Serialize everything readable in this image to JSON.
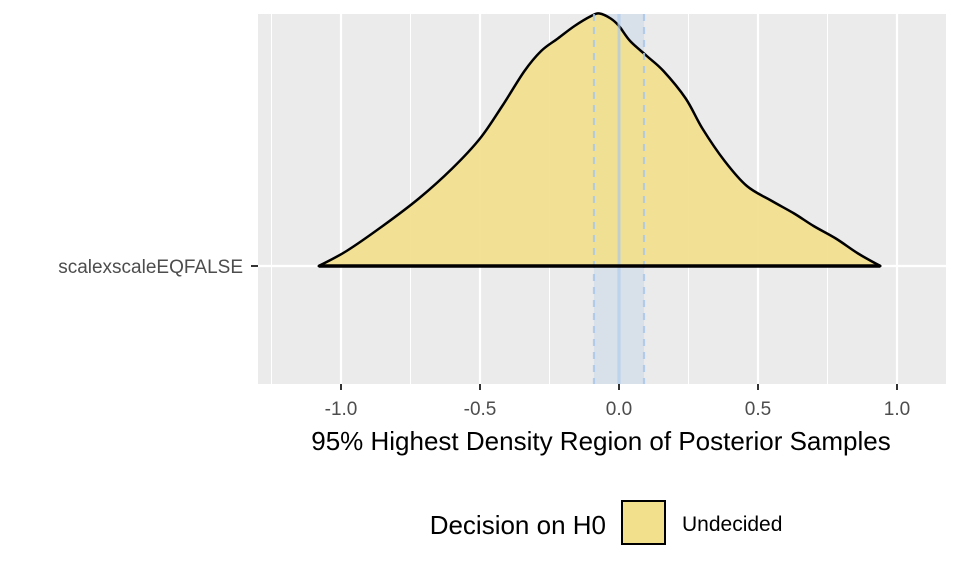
{
  "chart_data": {
    "type": "density",
    "title": "",
    "xlabel": "95% Highest Density Region of Posterior Samples",
    "ylabel": "",
    "xlim": [
      -1.25,
      1.25
    ],
    "x_ticks": [
      -1.0,
      -0.5,
      0.0,
      0.5,
      1.0
    ],
    "x_tick_labels": [
      "-1.0",
      "-0.5",
      "0.0",
      "0.5",
      "1.0"
    ],
    "categories": [
      "scalexscaleEQFALSE"
    ],
    "series": [
      {
        "category": "scalexscaleEQFALSE",
        "fill_category": "Undecided",
        "hdr": [
          -1.08,
          0.94
        ],
        "density_points": [
          [
            -1.08,
            0.0
          ],
          [
            -0.98,
            0.06
          ],
          [
            -0.85,
            0.16
          ],
          [
            -0.72,
            0.27
          ],
          [
            -0.6,
            0.39
          ],
          [
            -0.5,
            0.51
          ],
          [
            -0.42,
            0.64
          ],
          [
            -0.34,
            0.78
          ],
          [
            -0.28,
            0.86
          ],
          [
            -0.22,
            0.91
          ],
          [
            -0.16,
            0.96
          ],
          [
            -0.1,
            1.0
          ],
          [
            -0.07,
            1.01
          ],
          [
            -0.03,
            0.99
          ],
          [
            0.0,
            0.96
          ],
          [
            0.04,
            0.9
          ],
          [
            0.1,
            0.84
          ],
          [
            0.16,
            0.78
          ],
          [
            0.24,
            0.67
          ],
          [
            0.3,
            0.55
          ],
          [
            0.38,
            0.42
          ],
          [
            0.46,
            0.32
          ],
          [
            0.55,
            0.26
          ],
          [
            0.63,
            0.21
          ],
          [
            0.7,
            0.16
          ],
          [
            0.78,
            0.11
          ],
          [
            0.86,
            0.05
          ],
          [
            0.94,
            0.0
          ]
        ]
      }
    ],
    "rope": {
      "low": -0.09,
      "high": 0.09,
      "center": 0.0,
      "color": "#a9c7ea"
    },
    "legend": {
      "title": "Decision on H0",
      "position": "bottom",
      "entries": [
        {
          "label": "Undecided",
          "color": "#f2e08c"
        }
      ]
    },
    "grid": true,
    "colors": {
      "panel": "#ebebeb",
      "grid": "#ffffff",
      "fill": "#f2e08c",
      "stroke": "#000000"
    }
  }
}
